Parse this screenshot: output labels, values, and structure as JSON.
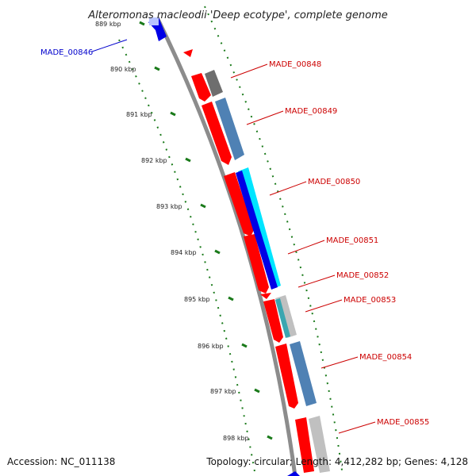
{
  "title": "Alteromonas macleodii 'Deep ecotype', complete genome",
  "accession_text": "Accession: NC_011138",
  "summary_text": "Topology: circular; Length: 4,412,282 bp; Genes: 4,128",
  "colors": {
    "backbone": "#8c8c8c",
    "forward_cds": "#ff0000",
    "reverse_cds": "#4f81b4",
    "blue_cds": "#0000e6",
    "cyan_cds": "#00e5ff",
    "dark_gray_cds": "#6e6e6e",
    "light_gray_cds": "#c0c0c0",
    "tick": "#1a7a1a",
    "label_red": "#cc0000",
    "label_blue": "#0000cc"
  },
  "ticks": [
    {
      "kbp": 889,
      "label": "889 kbp"
    },
    {
      "kbp": 890,
      "label": "890 kbp"
    },
    {
      "kbp": 891,
      "label": "891 kbp"
    },
    {
      "kbp": 892,
      "label": "892 kbp"
    },
    {
      "kbp": 893,
      "label": "893 kbp"
    },
    {
      "kbp": 894,
      "label": "894 kbp"
    },
    {
      "kbp": 895,
      "label": "895 kbp"
    },
    {
      "kbp": 896,
      "label": "896 kbp"
    },
    {
      "kbp": 897,
      "label": "897 kbp"
    },
    {
      "kbp": 898,
      "label": "898 kbp"
    }
  ],
  "gene_labels": [
    {
      "name": "MADE_00846",
      "color": "blue",
      "side": "left"
    },
    {
      "name": "MADE_00848",
      "color": "red",
      "side": "right"
    },
    {
      "name": "MADE_00849",
      "color": "red",
      "side": "right"
    },
    {
      "name": "MADE_00850",
      "color": "red",
      "side": "right"
    },
    {
      "name": "MADE_00851",
      "color": "red",
      "side": "right"
    },
    {
      "name": "MADE_00852",
      "color": "red",
      "side": "right"
    },
    {
      "name": "MADE_00853",
      "color": "red",
      "side": "right"
    },
    {
      "name": "MADE_00854",
      "color": "red",
      "side": "right"
    },
    {
      "name": "MADE_00855",
      "color": "red",
      "side": "right"
    }
  ]
}
